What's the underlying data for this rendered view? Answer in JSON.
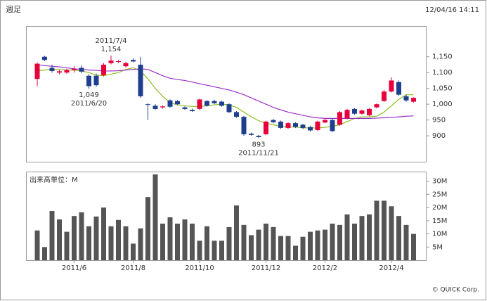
{
  "header": {
    "title": "週足",
    "timestamp": "12/04/16 14:11"
  },
  "footer": "© QUICK Corp.",
  "chart_data": [
    {
      "type": "candlestick",
      "up_color": "#e6003c",
      "down_color": "#1e3f8f",
      "open": [
        1080,
        1150,
        1115,
        1100,
        1100,
        1108,
        1115,
        1090,
        1090,
        1092,
        1130,
        1134,
        1120,
        1140,
        1125,
        1000,
        995,
        990,
        1012,
        1010,
        990,
        982,
        985,
        1010,
        1010,
        1008,
        1000,
        975,
        960,
        907,
        900,
        905,
        950,
        945,
        925,
        940,
        935,
        928,
        918,
        942,
        950,
        935,
        955,
        985,
        970,
        965,
        990,
        1010,
        1040,
        1070,
        1025,
        1008
      ],
      "high": [
        1132,
        1153,
        1125,
        1108,
        1112,
        1120,
        1122,
        1095,
        1097,
        1130,
        1154,
        1140,
        1134,
        1145,
        1150,
        1003,
        1000,
        996,
        1015,
        1013,
        993,
        986,
        1018,
        1013,
        1014,
        1011,
        1003,
        978,
        963,
        910,
        903,
        948,
        953,
        948,
        943,
        943,
        938,
        931,
        948,
        955,
        954,
        978,
        985,
        988,
        983,
        988,
        1002,
        1045,
        1085,
        1075,
        1030,
        1022
      ],
      "low": [
        1057,
        1136,
        1100,
        1095,
        1096,
        1100,
        1098,
        1049,
        1055,
        1088,
        1126,
        1130,
        1116,
        1133,
        1020,
        950,
        982,
        986,
        989,
        997,
        982,
        976,
        982,
        992,
        1000,
        992,
        972,
        957,
        900,
        900,
        893,
        902,
        940,
        922,
        922,
        925,
        922,
        914,
        915,
        940,
        912,
        932,
        952,
        967,
        967,
        962,
        987,
        1007,
        1037,
        1027,
        1008,
        1005
      ],
      "close": [
        1128,
        1140,
        1105,
        1104,
        1108,
        1112,
        1103,
        1057,
        1060,
        1125,
        1138,
        1136,
        1130,
        1135,
        1025,
        998,
        985,
        993,
        992,
        1000,
        985,
        978,
        1015,
        995,
        1003,
        995,
        975,
        960,
        905,
        903,
        896,
        945,
        943,
        925,
        940,
        928,
        925,
        917,
        945,
        950,
        915,
        975,
        982,
        970,
        980,
        985,
        1000,
        1040,
        1075,
        1030,
        1012,
        1020
      ],
      "lines": [
        {
          "color": "#8cbf1f",
          "values": [
            1105,
            1108,
            1110,
            1110,
            1108,
            1108,
            1105,
            1100,
            1092,
            1090,
            1095,
            1100,
            1110,
            1115,
            1105,
            1080,
            1050,
            1025,
            1005,
            998,
            995,
            993,
            993,
            995,
            998,
            1000,
            998,
            990,
            975,
            960,
            948,
            940,
            935,
            930,
            928,
            928,
            925,
            925,
            925,
            927,
            930,
            935,
            945,
            955,
            960,
            960,
            962,
            975,
            995,
            1015,
            1030,
            1030
          ]
        },
        {
          "color": "#9b30c8",
          "values": [
            1125,
            1122,
            1120,
            1118,
            1115,
            1112,
            1110,
            1108,
            1107,
            1105,
            1105,
            1106,
            1108,
            1110,
            1112,
            1110,
            1100,
            1090,
            1082,
            1078,
            1075,
            1070,
            1065,
            1060,
            1055,
            1050,
            1045,
            1038,
            1030,
            1020,
            1010,
            1000,
            990,
            982,
            975,
            970,
            965,
            960,
            957,
            955,
            955,
            955,
            955,
            955,
            955,
            955,
            956,
            957,
            958,
            960,
            962,
            963
          ]
        }
      ],
      "ylim": [
        818,
        1245
      ],
      "yticks": [
        {
          "value": 1150,
          "label": "1,150"
        },
        {
          "value": 1100,
          "label": "1,100"
        },
        {
          "value": 1050,
          "label": "1,050"
        },
        {
          "value": 1000,
          "label": "1,000"
        },
        950,
        900
      ],
      "annotations": [
        {
          "date": "2011/7/4",
          "value": 1154,
          "label": "1,154"
        },
        {
          "date": "2011/6/20",
          "value": 1049,
          "label": "1,049"
        },
        {
          "date": "2011/11/21",
          "value": 893,
          "label": "893"
        }
      ]
    },
    {
      "type": "bar",
      "label": "出来高単位：M",
      "color": "#555555",
      "categories": [
        null,
        null,
        null,
        null,
        null,
        "2011/6",
        null,
        null,
        null,
        null,
        null,
        null,
        null,
        "2011/8",
        null,
        null,
        null,
        null,
        null,
        null,
        null,
        null,
        "2011/10",
        null,
        null,
        null,
        null,
        null,
        null,
        null,
        null,
        "2011/12",
        null,
        null,
        null,
        null,
        null,
        null,
        null,
        "2012/2",
        null,
        null,
        null,
        null,
        null,
        null,
        null,
        null,
        "2012/4",
        null,
        null,
        null
      ],
      "values": [
        11.3,
        5,
        18.7,
        15.5,
        10.8,
        16.8,
        18.2,
        12.9,
        16.6,
        20,
        12.9,
        15.3,
        12.9,
        6.3,
        12.1,
        24,
        32.6,
        13.9,
        16.3,
        13.9,
        15.5,
        13.9,
        7.4,
        12.9,
        7.4,
        7.4,
        12.6,
        20.8,
        13.4,
        9.5,
        11.6,
        13.9,
        12.6,
        9.2,
        9.2,
        5.5,
        8.9,
        10.8,
        11.3,
        11.6,
        13.9,
        13.4,
        17.4,
        13.9,
        16.8,
        17.4,
        22.6,
        22.6,
        20.5,
        16.8,
        13.4,
        10
      ],
      "ylim": [
        0,
        33.4
      ],
      "yticks": [
        {
          "value": 30,
          "label": "30M"
        },
        {
          "value": 25,
          "label": "25M"
        },
        {
          "value": 20,
          "label": "20M"
        },
        {
          "value": 15,
          "label": "15M"
        },
        {
          "value": 10,
          "label": "10M"
        },
        {
          "value": 5,
          "label": "5M"
        }
      ]
    }
  ]
}
